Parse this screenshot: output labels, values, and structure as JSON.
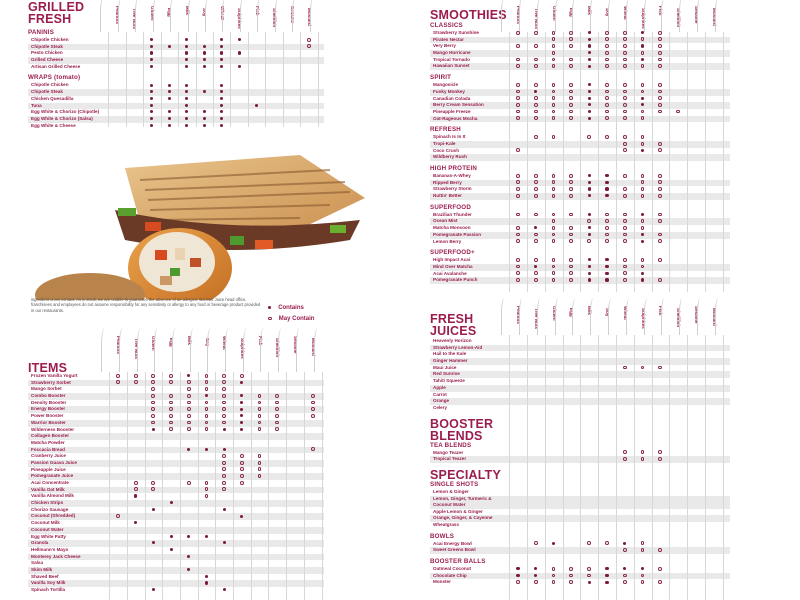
{
  "allergens": [
    "Peanuts",
    "Tree Nuts",
    "Gluten",
    "Egg",
    "Milk",
    "Soy",
    "Wheat",
    "Sulphites",
    "Fish",
    "Shellfish",
    "Sesame",
    "Mustard"
  ],
  "legend": {
    "contains": "Contains",
    "may_contain": "May Contain",
    "contains_symbol": "dot",
    "may_contain_symbol": "ring"
  },
  "disclaimer": "ingredient cross contact. As a result, we are unable to guarantee the absence of an allergen. Booster Juice head office, franchisees and employees do not assume responsibility for any sensitivity or allergy to any food or beverage product provided in our restaurants.",
  "colors": {
    "brand": "#9b1d4f",
    "stripe": "#e9e9e9",
    "grid": "#d7d7d7"
  },
  "image": {
    "description": "grilled panini and wrap photo"
  },
  "sections": {
    "grilled_fresh": {
      "title_line1": "GRILLED",
      "title_line2": "FRESH",
      "groups": [
        {
          "name": "PANINIS",
          "items": [
            {
              "name": "Chipotle Chicken",
              "c": "..C.C.CC....",
              "m": "...........M"
            },
            {
              "name": "Chipotle Steak",
              "c": "..CCCCC.....",
              "m": "...........M"
            },
            {
              "name": "Pesto Chicken",
              "c": "..C.CCCC....",
              "m": "............"
            },
            {
              "name": "Grilled Cheese",
              "c": "..C.CCC.....",
              "m": "............"
            },
            {
              "name": "Artisan Grilled Cheese",
              "c": "..C.CCCC....",
              "m": "............"
            }
          ]
        },
        {
          "name": "WRAPS (tomato)",
          "items": [
            {
              "name": "Chipotle Chicken",
              "c": "..CCC.C.....",
              "m": "............"
            },
            {
              "name": "Chipotle Steak",
              "c": "..CCCCC.....",
              "m": "............"
            },
            {
              "name": "Chicken Quesadilla",
              "c": "..CCC.C.....",
              "m": "............"
            },
            {
              "name": "Tuna",
              "c": "..C.C.C.C...",
              "m": "............"
            },
            {
              "name": "Egg White & Chorizo (Chipotle)",
              "c": "..CCCCC.....",
              "m": "............"
            },
            {
              "name": "Egg White & Chorizo (Salsa)",
              "c": "..CCCCC.....",
              "m": "............"
            },
            {
              "name": "Egg White & Cheese",
              "c": "..CCCCC.....",
              "m": "............"
            }
          ]
        }
      ]
    },
    "items": {
      "title": "ITEMS",
      "rows": [
        {
          "name": "Frozen Vanilla Yogurt",
          "c": "....C.......",
          "m": "MMMM.MMM...."
        },
        {
          "name": "Strawberry Sorbet",
          "c": ".......C....",
          "m": "MMMMMMM....."
        },
        {
          "name": "Mango Sorbet",
          "c": "............",
          "m": "..M.MMM....."
        },
        {
          "name": "Combo Booster",
          "c": ".....C.C....",
          "m": "..MMM.M.MM.M"
        },
        {
          "name": "Density Booster",
          "c": ".......C....",
          "m": "..MMMMM.MM.M"
        },
        {
          "name": "Energy Booster",
          "c": ".......C....",
          "m": "..MMMMM.MM.M"
        },
        {
          "name": "Power Booster",
          "c": ".......C....",
          "m": "..MMMMM.MM.M"
        },
        {
          "name": "Warrior Booster",
          "c": ".......C....",
          "m": "..MMMMM.MM.."
        },
        {
          "name": "Wilderness Booster",
          "c": "..C...CC....",
          "m": "...MMM..MM.."
        },
        {
          "name": "Collagen Booster",
          "c": "............",
          "m": "............"
        },
        {
          "name": "Matcha Powder",
          "c": "............",
          "m": "............"
        },
        {
          "name": "Foccacia Bread",
          "c": "....CCC.....",
          "m": "...........M"
        },
        {
          "name": "Cranberry Juice",
          "c": "............",
          "m": "......MMM..."
        },
        {
          "name": "Passion Guava Juice",
          "c": "............",
          "m": "......MMM..."
        },
        {
          "name": "Pineapple Juice",
          "c": "............",
          "m": "......MMM..."
        },
        {
          "name": "Pomegranate Juice",
          "c": "............",
          "m": "......MMM..."
        },
        {
          "name": "Acai Concentrate",
          "c": "............",
          "m": ".MM.MMMM...."
        },
        {
          "name": "Vanilla Oat Milk",
          "c": "............",
          "m": ".MM..MM....."
        },
        {
          "name": "Vanilla Almond Milk",
          "c": ".C..........",
          "m": ".....M......"
        },
        {
          "name": "Chicken Strips",
          "c": "...C........",
          "m": "............"
        },
        {
          "name": "Chorizo Sausage",
          "c": "..C...C.....",
          "m": "............"
        },
        {
          "name": "Coconut (Shredded)",
          "c": ".......C....",
          "m": "M..........."
        },
        {
          "name": "Coconut Milk",
          "c": ".C..........",
          "m": "............"
        },
        {
          "name": "Coconut Water",
          "c": "............",
          "m": "............"
        },
        {
          "name": "Egg White Patty",
          "c": "...CCC......",
          "m": "............"
        },
        {
          "name": "Granola",
          "c": "..C...C.....",
          "m": "............"
        },
        {
          "name": "Hellmann's Mayo",
          "c": "...C........",
          "m": "............"
        },
        {
          "name": "Monterey Jack Cheese",
          "c": "....C.......",
          "m": "............"
        },
        {
          "name": "Salsa",
          "c": "............",
          "m": "............"
        },
        {
          "name": "Skim Milk",
          "c": "....C.......",
          "m": "............"
        },
        {
          "name": "Shaved Beef",
          "c": ".....C......",
          "m": "............"
        },
        {
          "name": "Vanilla Soy Milk",
          "c": ".....C......",
          "m": "............"
        },
        {
          "name": "Spinach Tortilla",
          "c": "..C...C.....",
          "m": "............"
        }
      ]
    },
    "smoothies": {
      "title": "SMOOTHIES",
      "groups": [
        {
          "name": "CLASSICS",
          "items": [
            {
              "name": "Strawberry Sunshine",
              "c": "....C..C....",
              "m": "MMMM.MM.M..."
            },
            {
              "name": "Pirates Nectar",
              "c": "....C.......",
              "m": "..MM.MMMM..."
            },
            {
              "name": "Very Berry",
              "c": "....C..C....",
              "m": "MMMM.MM.M..."
            },
            {
              "name": "Mango Hurricane",
              "c": "....C.......",
              "m": "..M..MMMM..."
            },
            {
              "name": "Tropical Tornado",
              "c": "....C..C....",
              "m": "MMMM.MM.M..."
            },
            {
              "name": "Hawaiian Sunset",
              "c": "....C.......",
              "m": "MMMM.MMMM..."
            }
          ]
        },
        {
          "name": "SPIRIT",
          "items": [
            {
              "name": "Mangosicle",
              "c": "....C.......",
              "m": "MMMM.MMMM..."
            },
            {
              "name": "Funky Monkey",
              "c": ".C..C.......",
              "m": "M.MM.MMMM..."
            },
            {
              "name": "Canadian Colada",
              "c": "....C..C....",
              "m": "MMMM.MM.M..."
            },
            {
              "name": "Berry Cream Sensation",
              "c": "....C..C....",
              "m": "MMMM.MM.M..."
            },
            {
              "name": "Pineapple Freeze",
              "c": "....C.......",
              "m": "MMMM.MMMMM.."
            },
            {
              "name": "Oat-Rageous Mocha",
              "c": "....C.......",
              "m": "MMMM.MMM...."
            }
          ]
        },
        {
          "name": "REFRESH",
          "items": [
            {
              "name": "Spinach Is In It",
              "c": "............",
              "m": ".MM.MMMM...."
            },
            {
              "name": "Tropi-Kale",
              "c": "............",
              "m": "......MMM..."
            },
            {
              "name": "Coco Crush",
              "c": ".......C....",
              "m": "M.....M.M..."
            },
            {
              "name": "Wildberry Rush",
              "c": "............",
              "m": "............"
            }
          ]
        },
        {
          "name": "HIGH PROTEIN",
          "items": [
            {
              "name": "Bananas-A-Whey",
              "c": "....CC......",
              "m": "MMMM..MMM..."
            },
            {
              "name": "Ripped Berry",
              "c": "....CC......",
              "m": "MMMM...MM..."
            },
            {
              "name": "Strawberry Storm",
              "c": "....CC......",
              "m": "MMMM..MMM..."
            },
            {
              "name": "Nuttin' Better",
              "c": "....CC......",
              "m": "MMMM..MMM..."
            }
          ]
        },
        {
          "name": "SUPERFOOD",
          "items": [
            {
              "name": "Brazilian Thunder",
              "c": "....C..C....",
              "m": "MMMM.MM.M..."
            },
            {
              "name": "Ocean Mist",
              "c": "............",
              "m": "..M.MMMMM..."
            },
            {
              "name": "Matcha Monsoon",
              "c": ".C..C.......",
              "m": "M.MM.MMM...."
            },
            {
              "name": "Pomegranate Passion",
              "c": "....C..C....",
              "m": "MMMM.MM.M..."
            },
            {
              "name": "Lemon Berry",
              "c": ".......C....",
              "m": "MMMMMMM.M..."
            }
          ]
        },
        {
          "name": "SUPERFOOD+",
          "items": [
            {
              "name": "High Impact Acai",
              "c": "....CC......",
              "m": "MMMM..MMM..."
            },
            {
              "name": "Mind Over Matcha",
              "c": ".C..CC......",
              "m": "M.MM..MM...."
            },
            {
              "name": "Acai Avalanche",
              "c": "....CC.C....",
              "m": "MMMM..M....."
            },
            {
              "name": "Pomegranate Punch",
              "c": "....CC.C....",
              "m": "MMMM..M.M..."
            }
          ]
        }
      ]
    },
    "fresh_juices": {
      "title_line1": "FRESH",
      "title_line2": "JUICES",
      "items": [
        {
          "name": "Heavenly Horizon",
          "c": "............",
          "m": "............"
        },
        {
          "name": "Strawberry Lemon-Aid",
          "c": "............",
          "m": "............"
        },
        {
          "name": "Hail to the Kale",
          "c": "............",
          "m": "............"
        },
        {
          "name": "Ginger Hammer",
          "c": "............",
          "m": "............"
        },
        {
          "name": "Maui Juice",
          "c": "............",
          "m": "......MMM..."
        },
        {
          "name": "Red Sunrise",
          "c": "............",
          "m": "............"
        },
        {
          "name": "Tahiti Squeeze",
          "c": "............",
          "m": "............"
        },
        {
          "name": "Apple",
          "c": "............",
          "m": "............"
        },
        {
          "name": "Carrot",
          "c": "............",
          "m": "............"
        },
        {
          "name": "Orange",
          "c": "............",
          "m": "............"
        },
        {
          "name": "Celery",
          "c": "............",
          "m": "............"
        }
      ]
    },
    "booster_blends": {
      "title_line1": "BOOSTER",
      "title_line2": "BLENDS",
      "groups": [
        {
          "name": "TEA BLENDS",
          "items": [
            {
              "name": "Mango Teazer",
              "c": "............",
              "m": "......MMM..."
            },
            {
              "name": "Tropical Teazer",
              "c": "............",
              "m": "......MMM..."
            }
          ]
        }
      ]
    },
    "specialty": {
      "title": "SPECIALTY",
      "groups": [
        {
          "name": "SINGLE SHOTS",
          "items": [
            {
              "name": "Lemon & Ginger",
              "c": "............",
              "m": "............"
            },
            {
              "name": "Lemon, Ginger, Turmeric & Coconut Water",
              "c": "............",
              "m": "............",
              "two_line": true
            },
            {
              "name": "Apple Lemon & Ginger",
              "c": "............",
              "m": "............"
            },
            {
              "name": "Orange, Ginger, & Cayenne",
              "c": "............",
              "m": "............"
            },
            {
              "name": "Wheatgrass",
              "c": "............",
              "m": "............"
            }
          ]
        },
        {
          "name": "BOWLS",
          "items": [
            {
              "name": "Acai Energy Bowl",
              "c": "..C...C.....",
              "m": ".M..MM.M...."
            },
            {
              "name": "Sweet Greens Bowl",
              "c": "............",
              "m": "......MMM..."
            }
          ]
        },
        {
          "name": "BOOSTER BALLS",
          "items": [
            {
              "name": "Oatmeal Coconut",
              "c": "CC...CCC....",
              "m": "..MMM...M..."
            },
            {
              "name": "Chocolate Chip",
              "c": "CC...C......",
              "m": "..MMM.MM...."
            },
            {
              "name": "Monster",
              "c": "....CC......",
              "m": "MMMM..MMM..."
            }
          ]
        }
      ]
    }
  }
}
